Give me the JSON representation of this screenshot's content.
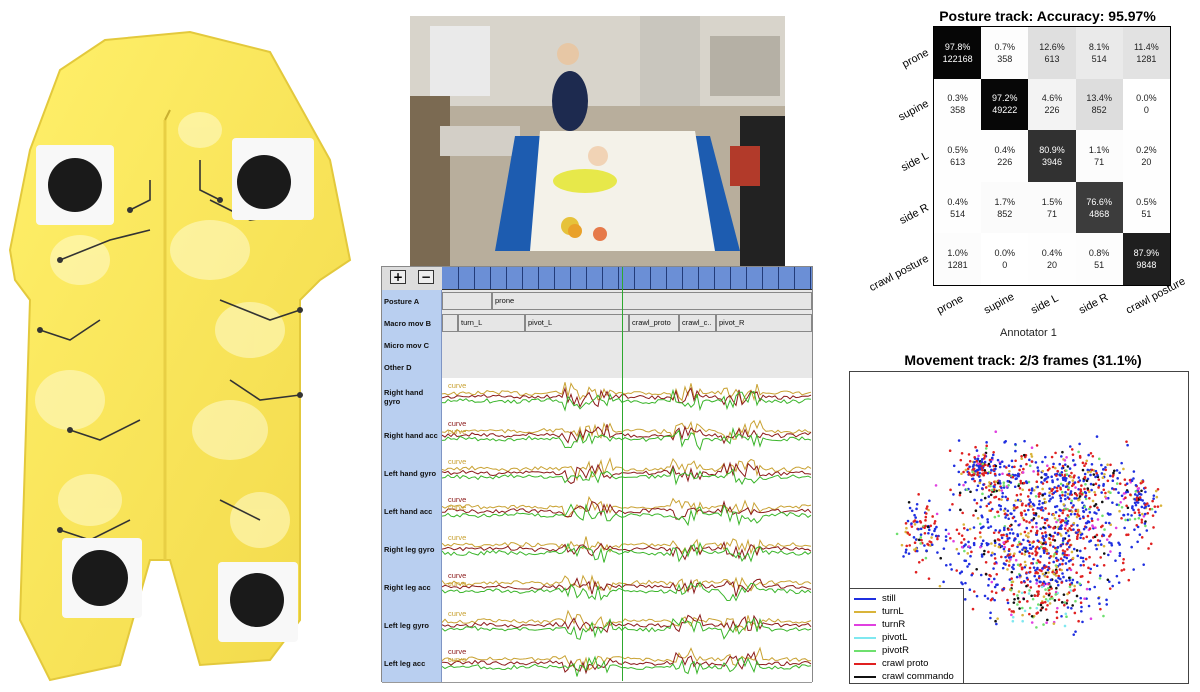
{
  "annotation_tool": {
    "zoom_in_label": "+",
    "zoom_out_label": "−",
    "tracks": [
      {
        "label": "Posture A",
        "segments": [
          "prone"
        ]
      },
      {
        "label": "Macro mov B",
        "segments": [
          "turn_L",
          "pivot_L",
          "crawl_proto",
          "crawl_c..",
          "pivot_R"
        ]
      },
      {
        "label": "Micro mov C",
        "segments": []
      },
      {
        "label": "Other D",
        "segments": []
      }
    ],
    "signals": [
      {
        "label": "Right hand gyro",
        "curves": [
          "curve"
        ]
      },
      {
        "label": "Right hand acc",
        "curves": [
          "curve",
          "curve"
        ]
      },
      {
        "label": "Left hand gyro",
        "curves": [
          "curve"
        ]
      },
      {
        "label": "Left hand acc",
        "curves": [
          "curve",
          "curve"
        ]
      },
      {
        "label": "Right leg gyro",
        "curves": [
          "curve"
        ]
      },
      {
        "label": "Right leg acc",
        "curves": [
          "curve",
          "curve"
        ]
      },
      {
        "label": "Left leg gyro",
        "curves": [
          "curve"
        ]
      },
      {
        "label": "Left leg acc",
        "curves": [
          "curve",
          "curve"
        ]
      }
    ],
    "curve_colors": [
      "#c9a233",
      "#8b1a1a",
      "#3ab52a"
    ]
  },
  "chart_data": [
    {
      "type": "heatmap",
      "title": "Posture track: Accuracy: 95.97%",
      "xlabel": "Annotator 1",
      "ylabel": "",
      "rows": [
        "prone",
        "supine",
        "side L",
        "side R",
        "crawl posture"
      ],
      "columns": [
        "prone",
        "supine",
        "side L",
        "side R",
        "crawl posture"
      ],
      "percent": [
        [
          "97.8%",
          "0.7%",
          "12.6%",
          "8.1%",
          "11.4%"
        ],
        [
          "0.3%",
          "97.2%",
          "4.6%",
          "13.4%",
          "0.0%"
        ],
        [
          "0.5%",
          "0.4%",
          "80.9%",
          "1.1%",
          "0.2%"
        ],
        [
          "0.4%",
          "1.7%",
          "1.5%",
          "76.6%",
          "0.5%"
        ],
        [
          "1.0%",
          "0.0%",
          "0.4%",
          "0.8%",
          "87.9%"
        ]
      ],
      "counts": [
        [
          122168,
          358,
          613,
          514,
          1281
        ],
        [
          358,
          49222,
          226,
          852,
          0
        ],
        [
          613,
          226,
          3946,
          71,
          20
        ],
        [
          514,
          852,
          71,
          4868,
          51
        ],
        [
          1281,
          0,
          20,
          51,
          9848
        ]
      ]
    },
    {
      "type": "scatter",
      "title": "Movement track: 2/3 frames (31.1%)",
      "legend": [
        {
          "name": "still",
          "color": "#1f2fe0"
        },
        {
          "name": "turnL",
          "color": "#d9b43a"
        },
        {
          "name": "turnR",
          "color": "#e040e0"
        },
        {
          "name": "pivotL",
          "color": "#7fe8f0"
        },
        {
          "name": "pivotR",
          "color": "#6ee06e"
        },
        {
          "name": "crawl proto",
          "color": "#e02020"
        },
        {
          "name": "crawl commando",
          "color": "#111111"
        }
      ]
    }
  ]
}
